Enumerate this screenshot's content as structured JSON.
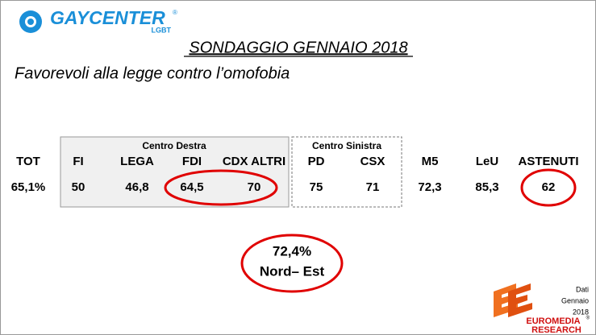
{
  "logo": {
    "name": "GAYCENTER",
    "mark": "®",
    "tag": "LGBT"
  },
  "title": "SONDAGGIO GENNAIO 2018",
  "subtitle": "Favorevoli alla legge contro l’omofobia",
  "groups": [
    "Centro Destra",
    "Centro Sinistra"
  ],
  "table": {
    "headers": [
      "TOT",
      "FI",
      "LEGA",
      "FDI",
      "CDX ALTRI",
      "PD",
      "CSX",
      "M5",
      "LeU",
      "ASTENUTI"
    ],
    "values": [
      "65,1%",
      "50",
      "46,8",
      "64,5",
      "70",
      "75",
      "71",
      "72,3",
      "85,3",
      "62"
    ]
  },
  "callout": {
    "value": "72,4%",
    "label": "Nord– Est"
  },
  "footer": {
    "lines": [
      "Dati",
      "Gennaio",
      "2018"
    ],
    "brand": [
      "EUROMEDIA",
      "RESEARCH"
    ],
    "mark": "®"
  }
}
